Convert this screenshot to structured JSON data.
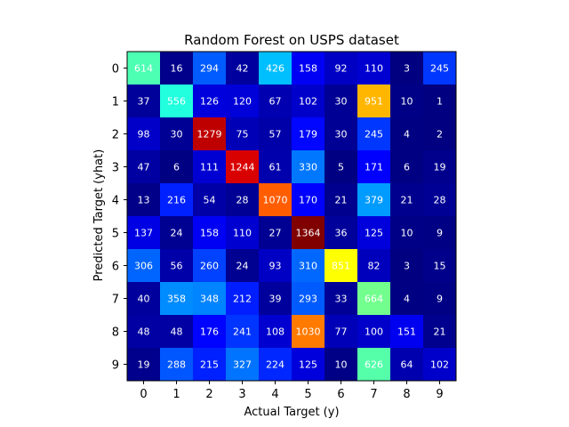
{
  "chart_data": {
    "type": "heatmap",
    "title": "Random Forest on USPS dataset",
    "xlabel": "Actual Target (y)",
    "ylabel": "Predicted Target (yhat)",
    "x_categories": [
      "0",
      "1",
      "2",
      "3",
      "4",
      "5",
      "6",
      "7",
      "8",
      "9"
    ],
    "y_categories": [
      "0",
      "1",
      "2",
      "3",
      "4",
      "5",
      "6",
      "7",
      "8",
      "9"
    ],
    "colormap": "jet",
    "value_range": [
      1,
      1364
    ],
    "grid": false,
    "values": [
      [
        614,
        16,
        294,
        42,
        426,
        158,
        92,
        110,
        3,
        245
      ],
      [
        37,
        556,
        126,
        120,
        67,
        102,
        30,
        951,
        10,
        1
      ],
      [
        98,
        30,
        1279,
        75,
        57,
        179,
        30,
        245,
        4,
        2
      ],
      [
        47,
        6,
        111,
        1244,
        61,
        330,
        5,
        171,
        6,
        19
      ],
      [
        13,
        216,
        54,
        28,
        1070,
        170,
        21,
        379,
        21,
        28
      ],
      [
        137,
        24,
        158,
        110,
        27,
        1364,
        36,
        125,
        10,
        9
      ],
      [
        306,
        56,
        260,
        24,
        93,
        310,
        851,
        82,
        3,
        15
      ],
      [
        40,
        358,
        348,
        212,
        39,
        293,
        33,
        664,
        4,
        9
      ],
      [
        48,
        48,
        176,
        241,
        108,
        1030,
        77,
        100,
        151,
        21
      ],
      [
        19,
        288,
        215,
        327,
        224,
        125,
        10,
        626,
        64,
        102
      ]
    ]
  }
}
